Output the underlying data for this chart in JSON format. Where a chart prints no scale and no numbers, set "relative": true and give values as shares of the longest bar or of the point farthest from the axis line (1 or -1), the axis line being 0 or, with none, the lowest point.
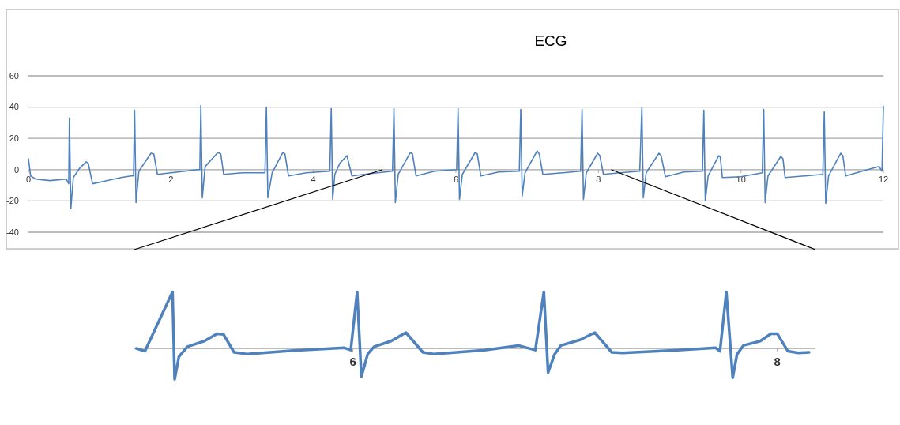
{
  "chart_data": [
    {
      "type": "line",
      "title": "ECG",
      "xlim": [
        0,
        12
      ],
      "xticks": [
        0,
        2,
        4,
        6,
        8,
        10,
        12
      ],
      "ylim": [
        -40,
        60
      ],
      "yticks": [
        -40,
        -20,
        0,
        20,
        40,
        60
      ],
      "grid": "y",
      "marker": "none",
      "line_style": "solid",
      "series": [
        {
          "color": "#4f81bd",
          "x": [
            0,
            0.03,
            0.1,
            0.3,
            0.53,
            0.565,
            0.575,
            0.595,
            0.63,
            0.72,
            0.81,
            0.84,
            0.9,
            1.1,
            1.3,
            1.44,
            1.475,
            1.49,
            1.51,
            1.55,
            1.72,
            1.76,
            1.81,
            2.0,
            2.2,
            2.37,
            2.405,
            2.42,
            2.44,
            2.48,
            2.66,
            2.7,
            2.74,
            3.0,
            3.32,
            3.34,
            3.36,
            3.42,
            3.57,
            3.6,
            3.65,
            3.9,
            4.23,
            4.25,
            4.27,
            4.3,
            4.37,
            4.47,
            4.54,
            4.8,
            5.11,
            5.13,
            5.15,
            5.19,
            5.36,
            5.39,
            5.44,
            5.7,
            6.01,
            6.03,
            6.05,
            6.09,
            6.27,
            6.3,
            6.35,
            6.6,
            6.89,
            6.91,
            6.93,
            6.97,
            7.14,
            7.17,
            7.22,
            7.5,
            7.75,
            7.77,
            7.79,
            7.83,
            7.99,
            8.02,
            8.07,
            8.3,
            8.58,
            8.61,
            8.63,
            8.67,
            8.85,
            8.88,
            8.94,
            9.2,
            9.46,
            9.48,
            9.5,
            9.54,
            9.69,
            9.71,
            9.74,
            10.0,
            10.3,
            10.32,
            10.34,
            10.38,
            10.56,
            10.59,
            10.62,
            10.9,
            11.15,
            11.17,
            11.19,
            11.23,
            11.4,
            11.43,
            11.47,
            11.7,
            11.94,
            11.98,
            12.0
          ],
          "values": [
            7,
            -4,
            -6,
            -7,
            -6,
            -9,
            33,
            -25,
            -5,
            1,
            5,
            4,
            -9,
            -7,
            -5,
            -4,
            -4,
            38,
            -21,
            -1,
            10.5,
            10,
            -3,
            -2,
            -1,
            0,
            0,
            41,
            -18,
            2,
            11,
            10,
            -3,
            -2,
            -2,
            40,
            -18,
            -2,
            11,
            10,
            -4,
            -2,
            -1,
            39,
            -19,
            -3,
            4,
            9,
            -4,
            -2.5,
            -1,
            39,
            -21,
            -3,
            11,
            10,
            -4,
            -1,
            0,
            39,
            -19,
            -3,
            11,
            10,
            -4,
            -1.5,
            -1,
            38.5,
            -17,
            -2,
            12,
            10,
            -3,
            -2,
            -1,
            38.5,
            -19,
            -2,
            10.5,
            9,
            -3,
            -2,
            -1,
            40,
            -18,
            -2,
            10.5,
            9,
            -4.5,
            -1.5,
            -1,
            38,
            -20,
            -4,
            9,
            8,
            -5,
            -4.5,
            -2,
            38.5,
            -21,
            -4,
            8.5,
            7,
            -5,
            -4,
            -3,
            37,
            -21.5,
            -4,
            10.5,
            9,
            -4,
            -1,
            2,
            -1,
            40.5
          ]
        }
      ]
    },
    {
      "type": "line",
      "relative": true,
      "xlim": [
        4.97,
        8.18
      ],
      "xticks": [
        6,
        8
      ],
      "marker": "none",
      "line_style": "solid",
      "series": [
        {
          "color": "#4f81bd",
          "x": [
            4.98,
            5.02,
            5.15,
            5.16,
            5.18,
            5.22,
            5.3,
            5.36,
            5.39,
            5.44,
            5.5,
            5.72,
            5.96,
            5.99,
            6.02,
            6.04,
            6.07,
            6.1,
            6.18,
            6.25,
            6.33,
            6.38,
            6.62,
            6.78,
            6.86,
            6.9,
            6.92,
            6.95,
            6.98,
            7.07,
            7.14,
            7.22,
            7.27,
            7.53,
            7.71,
            7.73,
            7.76,
            7.79,
            7.81,
            7.84,
            7.92,
            7.97,
            8.0,
            8.05,
            8.1,
            8.15
          ],
          "values": [
            0,
            -0.05,
            1,
            -0.55,
            -0.15,
            0.03,
            0.13,
            0.26,
            0.25,
            -0.07,
            -0.1,
            -0.04,
            0.01,
            -0.03,
            1,
            -0.5,
            -0.1,
            0.03,
            0.13,
            0.28,
            -0.07,
            -0.1,
            -0.03,
            0.05,
            -0.03,
            1,
            -0.43,
            -0.11,
            0.05,
            0.15,
            0.28,
            -0.07,
            -0.08,
            -0.03,
            0.01,
            -0.05,
            1,
            -0.52,
            -0.11,
            0.05,
            0.13,
            0.26,
            0.26,
            -0.05,
            -0.08,
            -0.07
          ]
        }
      ]
    }
  ]
}
